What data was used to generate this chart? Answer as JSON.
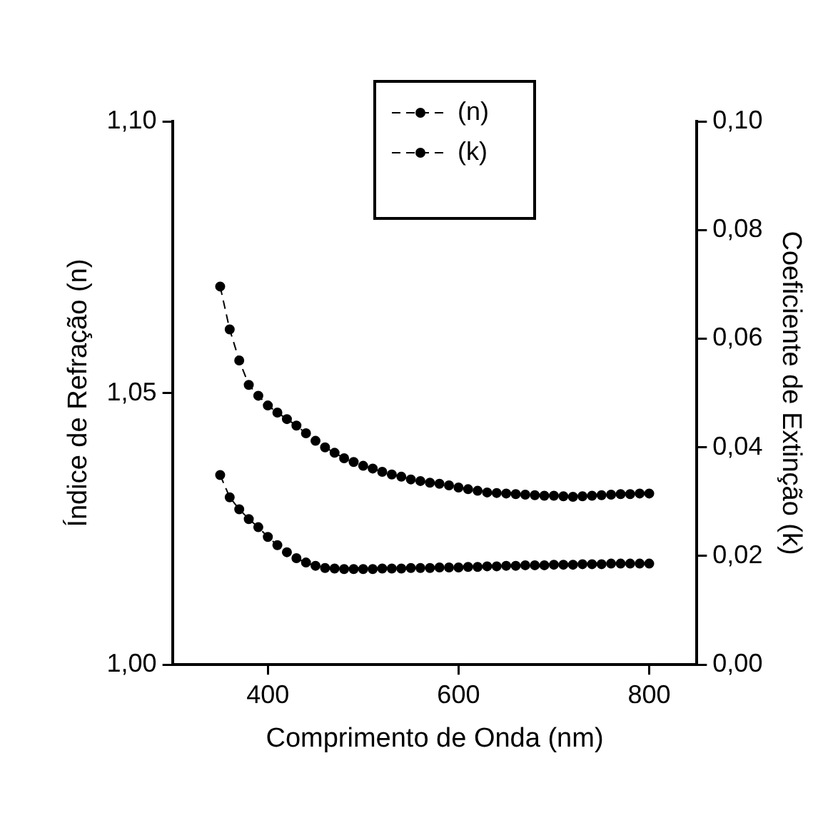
{
  "chart_data": {
    "type": "line",
    "xlabel": "Comprimento de Onda (nm)",
    "ylabel": "Índice de Refração (n)",
    "y2label": "Coeficiente de Extinção (k)",
    "x": [
      350,
      360,
      370,
      380,
      390,
      400,
      410,
      420,
      430,
      440,
      450,
      460,
      470,
      480,
      490,
      500,
      510,
      520,
      530,
      540,
      550,
      560,
      570,
      580,
      590,
      600,
      610,
      620,
      630,
      640,
      650,
      660,
      670,
      680,
      690,
      700,
      710,
      720,
      730,
      740,
      750,
      760,
      770,
      780,
      790,
      800
    ],
    "series": [
      {
        "name": "(n)",
        "color": "#000000",
        "marker": "circle",
        "values": [
          1.0696,
          1.0617,
          1.056,
          1.0515,
          1.0495,
          1.0477,
          1.0464,
          1.0452,
          1.044,
          1.0426,
          1.0412,
          1.04,
          1.039,
          1.038,
          1.0373,
          1.0366,
          1.0361,
          1.0355,
          1.035,
          1.0346,
          1.0341,
          1.0338,
          1.0335,
          1.0333,
          1.033,
          1.0326,
          1.0323,
          1.032,
          1.0317,
          1.0316,
          1.0315,
          1.0314,
          1.0313,
          1.0312,
          1.0311,
          1.0311,
          1.031,
          1.0309,
          1.031,
          1.0311,
          1.0312,
          1.0313,
          1.0314,
          1.0314,
          1.0315,
          1.0315
        ]
      },
      {
        "name": "(k)",
        "color": "#000000",
        "marker": "circle",
        "axis": "y2",
        "values": [
          0.0349,
          0.0308,
          0.0286,
          0.0268,
          0.0253,
          0.0235,
          0.022,
          0.0207,
          0.0196,
          0.0188,
          0.0182,
          0.0178,
          0.0177,
          0.0176,
          0.0176,
          0.0176,
          0.0176,
          0.0177,
          0.0177,
          0.0177,
          0.0178,
          0.0178,
          0.0178,
          0.0179,
          0.0179,
          0.0179,
          0.018,
          0.018,
          0.0181,
          0.0181,
          0.0182,
          0.0182,
          0.0183,
          0.0183,
          0.0183,
          0.0184,
          0.0184,
          0.0184,
          0.0185,
          0.0185,
          0.0185,
          0.0186,
          0.0186,
          0.0186,
          0.0186,
          0.0186
        ]
      }
    ],
    "xlim": [
      300,
      850
    ],
    "xticks": [
      400,
      600,
      800
    ],
    "ylim": [
      1.0,
      1.1
    ],
    "yticks": [
      {
        "value": 1.0,
        "label": "1,00"
      },
      {
        "value": 1.05,
        "label": "1,05"
      },
      {
        "value": 1.1,
        "label": "1,10"
      }
    ],
    "y2lim": [
      0,
      0.1
    ],
    "y2ticks": [
      {
        "value": 0,
        "label": "0,00"
      },
      {
        "value": 0.02,
        "label": "0,02"
      },
      {
        "value": 0.04,
        "label": "0,04"
      },
      {
        "value": 0.06,
        "label": "0,06"
      },
      {
        "value": 0.08,
        "label": "0,08"
      },
      {
        "value": 0.1,
        "label": "0,10"
      }
    ],
    "grid": false,
    "legend": "top",
    "line_style": "dashed"
  }
}
